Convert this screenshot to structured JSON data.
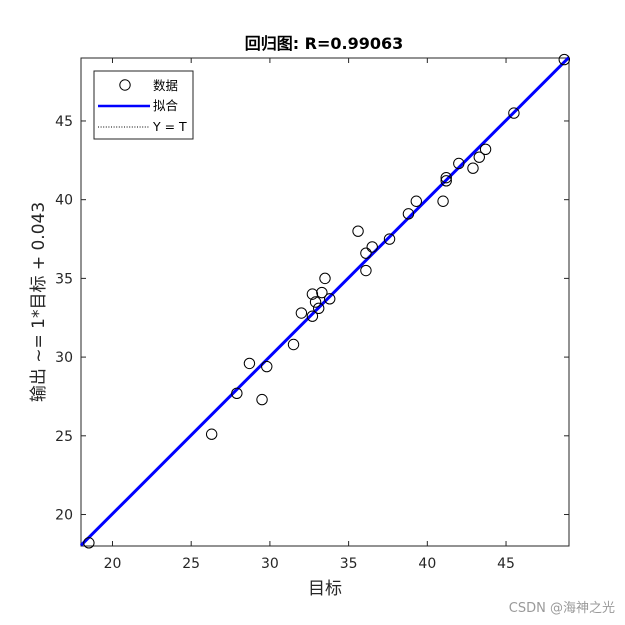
{
  "chart_data": {
    "type": "scatter",
    "title": "回归图: R=0.99063",
    "xlabel": "目标",
    "ylabel": "输出 ~= 1*目标 + 0.043",
    "xlim": [
      18,
      49
    ],
    "ylim": [
      18,
      49
    ],
    "xticks": [
      20,
      25,
      30,
      35,
      40,
      45
    ],
    "yticks": [
      20,
      25,
      30,
      35,
      40,
      45
    ],
    "grid": false,
    "legend_position": "top-left",
    "legend": [
      {
        "label": "数据",
        "style": "circle-marker",
        "color": "#000000"
      },
      {
        "label": "拟合",
        "style": "solid-line",
        "color": "#0000ff"
      },
      {
        "label": "Y = T",
        "style": "dotted-line",
        "color": "#000000"
      }
    ],
    "series": [
      {
        "name": "数据",
        "kind": "points",
        "points": [
          [
            18.5,
            18.2
          ],
          [
            26.3,
            25.1
          ],
          [
            27.9,
            27.7
          ],
          [
            28.7,
            29.6
          ],
          [
            29.5,
            27.3
          ],
          [
            29.8,
            29.4
          ],
          [
            31.5,
            30.8
          ],
          [
            32.0,
            32.8
          ],
          [
            32.7,
            32.6
          ],
          [
            32.7,
            34.0
          ],
          [
            32.9,
            33.5
          ],
          [
            33.1,
            33.1
          ],
          [
            33.3,
            34.1
          ],
          [
            33.5,
            35.0
          ],
          [
            33.8,
            33.7
          ],
          [
            35.6,
            38.0
          ],
          [
            36.1,
            36.6
          ],
          [
            36.1,
            35.5
          ],
          [
            36.5,
            37.0
          ],
          [
            37.6,
            37.5
          ],
          [
            38.8,
            39.1
          ],
          [
            39.3,
            39.9
          ],
          [
            41.0,
            39.9
          ],
          [
            41.2,
            41.4
          ],
          [
            41.2,
            41.2
          ],
          [
            42.0,
            42.3
          ],
          [
            42.9,
            42.0
          ],
          [
            43.3,
            42.7
          ],
          [
            43.7,
            43.2
          ],
          [
            45.5,
            45.5
          ],
          [
            48.7,
            48.9
          ]
        ]
      },
      {
        "name": "拟合",
        "kind": "line",
        "slope": 1,
        "intercept": 0.043,
        "color": "#0000ff"
      },
      {
        "name": "Y = T",
        "kind": "line",
        "slope": 1,
        "intercept": 0,
        "color": "#000000",
        "dash": "dotted"
      }
    ]
  },
  "watermark": "CSDN @海神之光"
}
